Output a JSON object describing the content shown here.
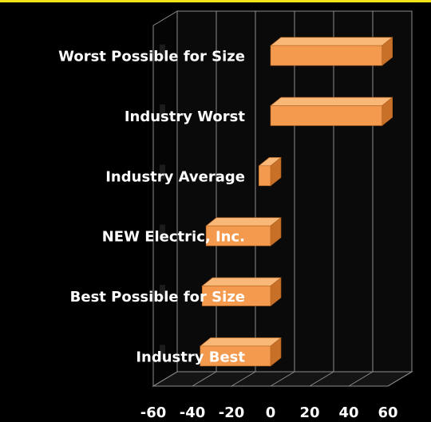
{
  "chart_data": {
    "type": "bar",
    "orientation": "horizontal",
    "style": "3d",
    "categories": [
      "Worst Possible  for Size",
      "Industry Worst",
      "Industry Average",
      "NEW Electric, Inc.",
      "Best Possible  for Size",
      "Industry Best"
    ],
    "values": [
      57,
      57,
      -6,
      -33,
      -35,
      -36
    ],
    "xlim": [
      -60,
      60
    ],
    "xticks": [
      -60,
      -40,
      -20,
      0,
      20,
      40,
      60
    ],
    "grid": true,
    "legend": "none",
    "title": "",
    "xlabel": "",
    "ylabel": ""
  },
  "colors": {
    "background": "#000000",
    "bar_front": "#f39a4e",
    "bar_top": "#f9b878",
    "bar_side": "#c86f28",
    "grid": "#8c8c8c",
    "top_strip": "#f2e21a",
    "text": "#ffffff"
  }
}
